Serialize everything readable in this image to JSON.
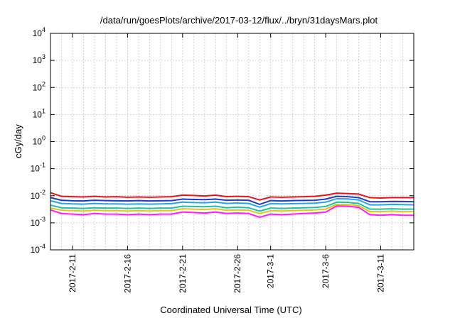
{
  "chart_data": {
    "type": "line",
    "title": "/data/run/goesPlots/archive/2017-03-12/flux/../bryn/31daysMars.plot",
    "xlabel": "Coordinated Universal Time (UTC)",
    "ylabel": "cGy/day",
    "y_scale": "log",
    "ylim": [
      0.0001,
      10000
    ],
    "y_ticks": [
      {
        "value": 0.0001,
        "base": "10",
        "exp": "-4"
      },
      {
        "value": 0.001,
        "base": "10",
        "exp": "-3"
      },
      {
        "value": 0.01,
        "base": "10",
        "exp": "-2"
      },
      {
        "value": 0.1,
        "base": "10",
        "exp": "-1"
      },
      {
        "value": 1,
        "base": "10",
        "exp": "0"
      },
      {
        "value": 10,
        "base": "10",
        "exp": "1"
      },
      {
        "value": 100,
        "base": "10",
        "exp": "2"
      },
      {
        "value": 1000,
        "base": "10",
        "exp": "3"
      },
      {
        "value": 10000,
        "base": "10",
        "exp": "4"
      }
    ],
    "xlim": [
      "2017-02-09",
      "2017-03-14"
    ],
    "x_ticks": [
      {
        "date": "2017-02-11",
        "label": "2017-2-11"
      },
      {
        "date": "2017-02-16",
        "label": "2017-2-16"
      },
      {
        "date": "2017-02-21",
        "label": "2017-2-21"
      },
      {
        "date": "2017-02-26",
        "label": "2017-2-26"
      },
      {
        "date": "2017-03-01",
        "label": "2017-3-1"
      },
      {
        "date": "2017-03-06",
        "label": "2017-3-6"
      },
      {
        "date": "2017-03-11",
        "label": "2017-3-11"
      }
    ],
    "grid": true,
    "x": [
      "2017-02-09",
      "2017-02-10",
      "2017-02-11",
      "2017-02-12",
      "2017-02-13",
      "2017-02-14",
      "2017-02-15",
      "2017-02-16",
      "2017-02-17",
      "2017-02-18",
      "2017-02-19",
      "2017-02-20",
      "2017-02-21",
      "2017-02-22",
      "2017-02-23",
      "2017-02-24",
      "2017-02-25",
      "2017-02-26",
      "2017-02-27",
      "2017-02-28",
      "2017-03-01",
      "2017-03-02",
      "2017-03-03",
      "2017-03-04",
      "2017-03-05",
      "2017-03-06",
      "2017-03-07",
      "2017-03-08",
      "2017-03-09",
      "2017-03-10",
      "2017-03-11",
      "2017-03-12",
      "2017-03-13",
      "2017-03-14"
    ],
    "series": [
      {
        "color": "#e8141c",
        "values": [
          0.013,
          0.0095,
          0.0092,
          0.009,
          0.0095,
          0.009,
          0.0092,
          0.0088,
          0.009,
          0.0088,
          0.009,
          0.0092,
          0.0105,
          0.0102,
          0.0098,
          0.0105,
          0.0092,
          0.0095,
          0.0092,
          0.007,
          0.009,
          0.0088,
          0.009,
          0.0092,
          0.0095,
          0.0105,
          0.0125,
          0.012,
          0.0115,
          0.0085,
          0.0082,
          0.0085,
          0.0085,
          0.0085
        ]
      },
      {
        "color": "#1b3dc8",
        "values": [
          0.0085,
          0.0068,
          0.0065,
          0.0064,
          0.0068,
          0.0066,
          0.0065,
          0.0064,
          0.0066,
          0.0064,
          0.0065,
          0.0066,
          0.0075,
          0.0073,
          0.0072,
          0.0075,
          0.0068,
          0.007,
          0.0068,
          0.0048,
          0.0066,
          0.0064,
          0.0066,
          0.0067,
          0.0068,
          0.0075,
          0.0095,
          0.0092,
          0.0085,
          0.006,
          0.006,
          0.0062,
          0.0061,
          0.006
        ]
      },
      {
        "color": "#2aa4e6",
        "values": [
          0.0065,
          0.0052,
          0.005,
          0.0049,
          0.0052,
          0.005,
          0.005,
          0.0049,
          0.005,
          0.0049,
          0.005,
          0.0051,
          0.0058,
          0.0056,
          0.0055,
          0.0058,
          0.0052,
          0.0054,
          0.0052,
          0.0038,
          0.0051,
          0.005,
          0.0051,
          0.0052,
          0.0053,
          0.0058,
          0.0078,
          0.0076,
          0.007,
          0.0046,
          0.0046,
          0.0048,
          0.0047,
          0.0046
        ]
      },
      {
        "color": "#1fc29a",
        "values": [
          0.0045,
          0.0036,
          0.0035,
          0.0034,
          0.0036,
          0.0035,
          0.0035,
          0.0034,
          0.0035,
          0.0034,
          0.0035,
          0.0035,
          0.0041,
          0.004,
          0.0039,
          0.0041,
          0.0036,
          0.0038,
          0.0036,
          0.0027,
          0.0035,
          0.0034,
          0.0035,
          0.0036,
          0.0037,
          0.004,
          0.0058,
          0.0057,
          0.0052,
          0.0032,
          0.0032,
          0.0033,
          0.0032,
          0.0032
        ]
      },
      {
        "color": "#e8c21a",
        "values": [
          0.0035,
          0.0029,
          0.0028,
          0.0027,
          0.0029,
          0.0028,
          0.0028,
          0.0027,
          0.0028,
          0.0027,
          0.0028,
          0.0028,
          0.0033,
          0.0032,
          0.0031,
          0.0033,
          0.0029,
          0.003,
          0.0029,
          0.0022,
          0.0028,
          0.0027,
          0.0028,
          0.0029,
          0.003,
          0.0032,
          0.0048,
          0.0047,
          0.0043,
          0.0026,
          0.0026,
          0.0027,
          0.0026,
          0.0026
        ]
      },
      {
        "color": "#ff1aff",
        "values": [
          0.003,
          0.0022,
          0.0021,
          0.002,
          0.0022,
          0.0021,
          0.0021,
          0.002,
          0.0021,
          0.002,
          0.0021,
          0.0021,
          0.0025,
          0.0024,
          0.0023,
          0.0025,
          0.0022,
          0.0023,
          0.0022,
          0.0016,
          0.0021,
          0.002,
          0.0021,
          0.0022,
          0.0023,
          0.0025,
          0.0042,
          0.0041,
          0.0037,
          0.002,
          0.0019,
          0.002,
          0.0019,
          0.0019
        ]
      }
    ]
  }
}
